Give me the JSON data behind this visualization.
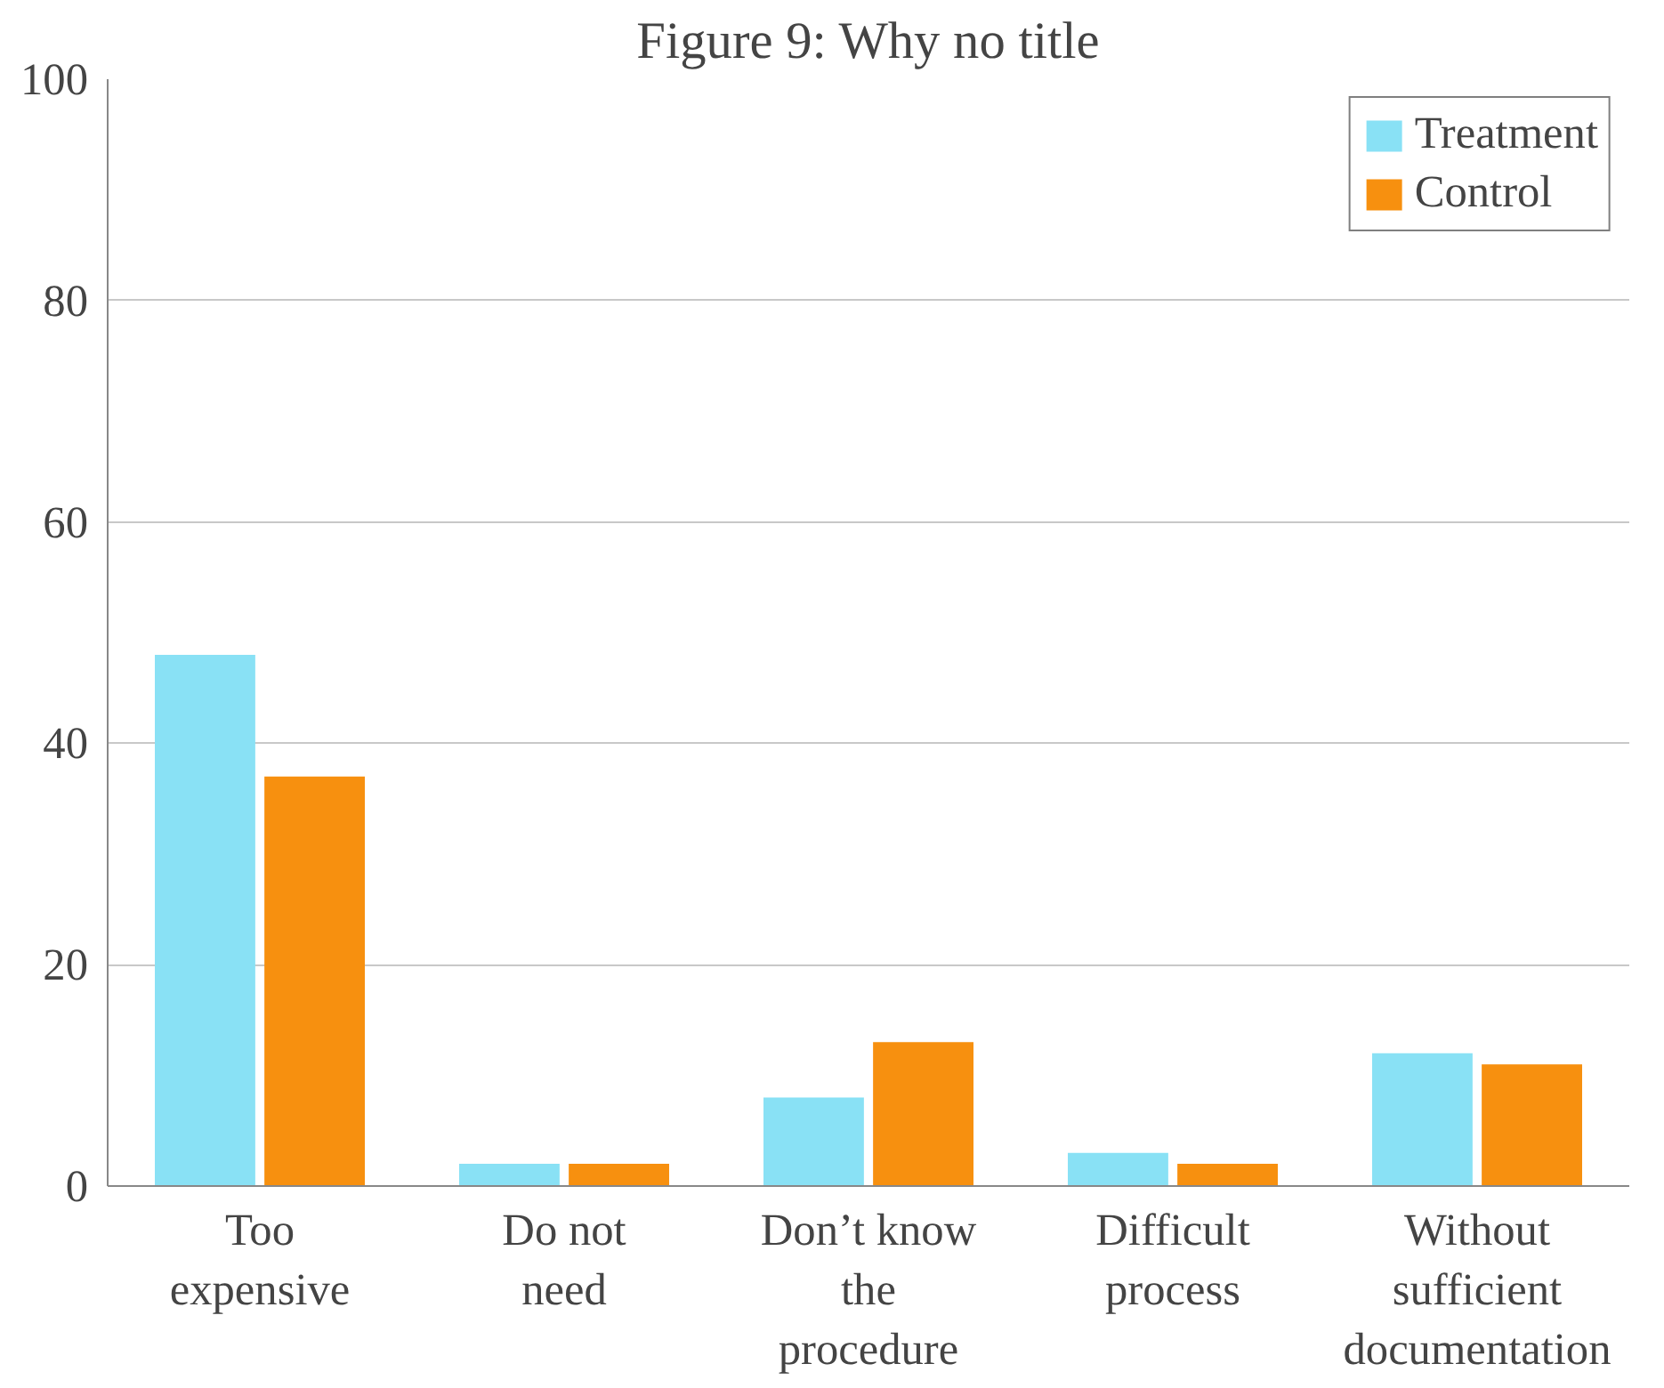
{
  "chart_data": {
    "type": "bar",
    "title": "Figure 9: Why no title",
    "categories": [
      "Too expensive",
      "Do not need",
      "Don’t know the procedure",
      "Difficult process",
      "Without sufficient documentation"
    ],
    "series": [
      {
        "name": "Treatment",
        "color": "#89e1f5",
        "values": [
          48,
          2,
          8,
          3,
          12
        ]
      },
      {
        "name": "Control",
        "color": "#f7900f",
        "values": [
          37,
          2,
          13,
          2,
          11
        ]
      }
    ],
    "ylim": [
      0,
      100
    ],
    "yticks": [
      0,
      20,
      40,
      60,
      80,
      100
    ],
    "grid": "y",
    "legend": "top right"
  }
}
